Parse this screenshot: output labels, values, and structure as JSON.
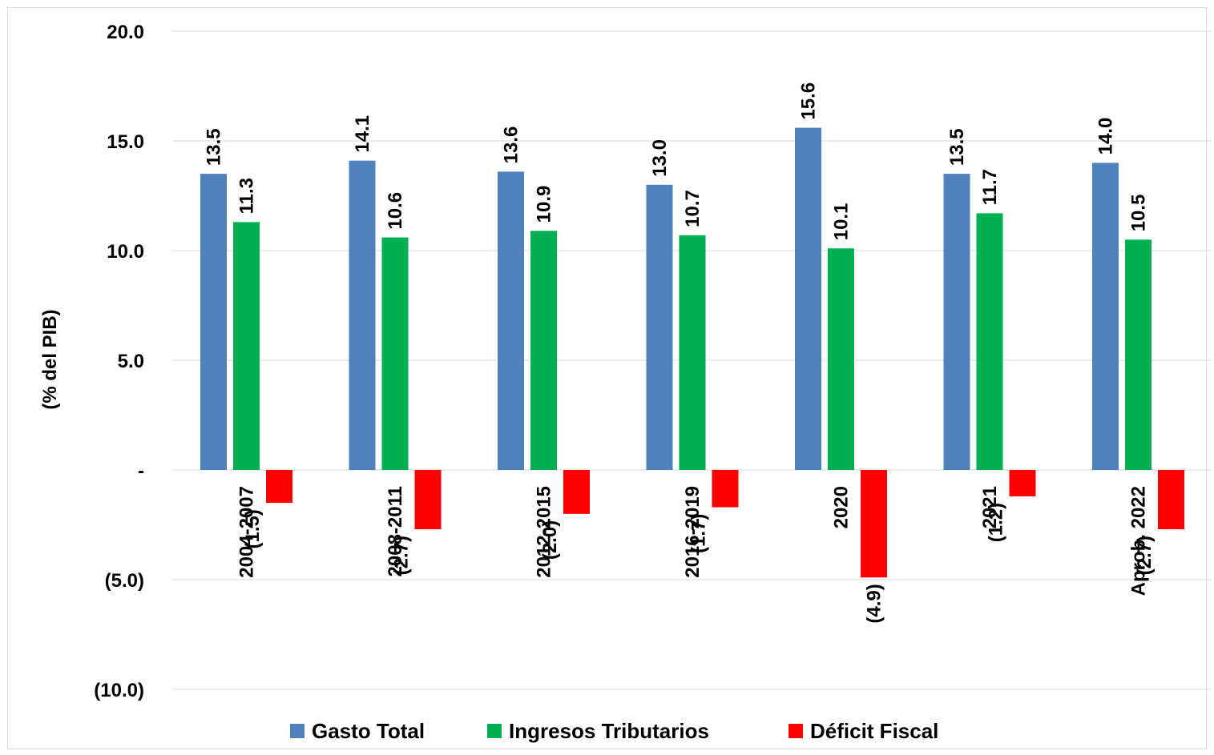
{
  "chart_data": {
    "type": "bar",
    "ylabel": "(% del PIB)",
    "ylim": [
      -10,
      20
    ],
    "yticks": [
      {
        "value": 20,
        "label": "20.0"
      },
      {
        "value": 15,
        "label": "15.0"
      },
      {
        "value": 10,
        "label": "10.0"
      },
      {
        "value": 5,
        "label": "5.0"
      },
      {
        "value": 0,
        "label": "-"
      },
      {
        "value": -5,
        "label": "(5.0)"
      },
      {
        "value": -10,
        "label": "(10.0)"
      }
    ],
    "grid": true,
    "legend_position": "bottom",
    "categories": [
      "2004-2007",
      "2008-2011",
      "2012-2015",
      "2016-2019",
      "2020",
      "2021",
      "Aprob. 2022"
    ],
    "series": [
      {
        "name": "Gasto Total",
        "color": "#4f81bd",
        "values": [
          13.5,
          14.1,
          13.6,
          13.0,
          15.6,
          13.5,
          14.0
        ],
        "labels": [
          "13.5",
          "14.1",
          "13.6",
          "13.0",
          "15.6",
          "13.5",
          "14.0"
        ]
      },
      {
        "name": "Ingresos Tributarios",
        "color": "#00b050",
        "values": [
          11.3,
          10.6,
          10.9,
          10.7,
          10.1,
          11.7,
          10.5
        ],
        "labels": [
          "11.3",
          "10.6",
          "10.9",
          "10.7",
          "10.1",
          "11.7",
          "10.5"
        ]
      },
      {
        "name": "Déficit Fiscal",
        "color": "#ff0000",
        "values": [
          -1.5,
          -2.7,
          -2.0,
          -1.7,
          -4.9,
          -1.2,
          -2.7
        ],
        "labels": [
          "(1.5)",
          "(2.7)",
          "(2.0)",
          "(1.7)",
          "(4.9)",
          "(1.2)",
          "(2.7)"
        ]
      }
    ]
  }
}
